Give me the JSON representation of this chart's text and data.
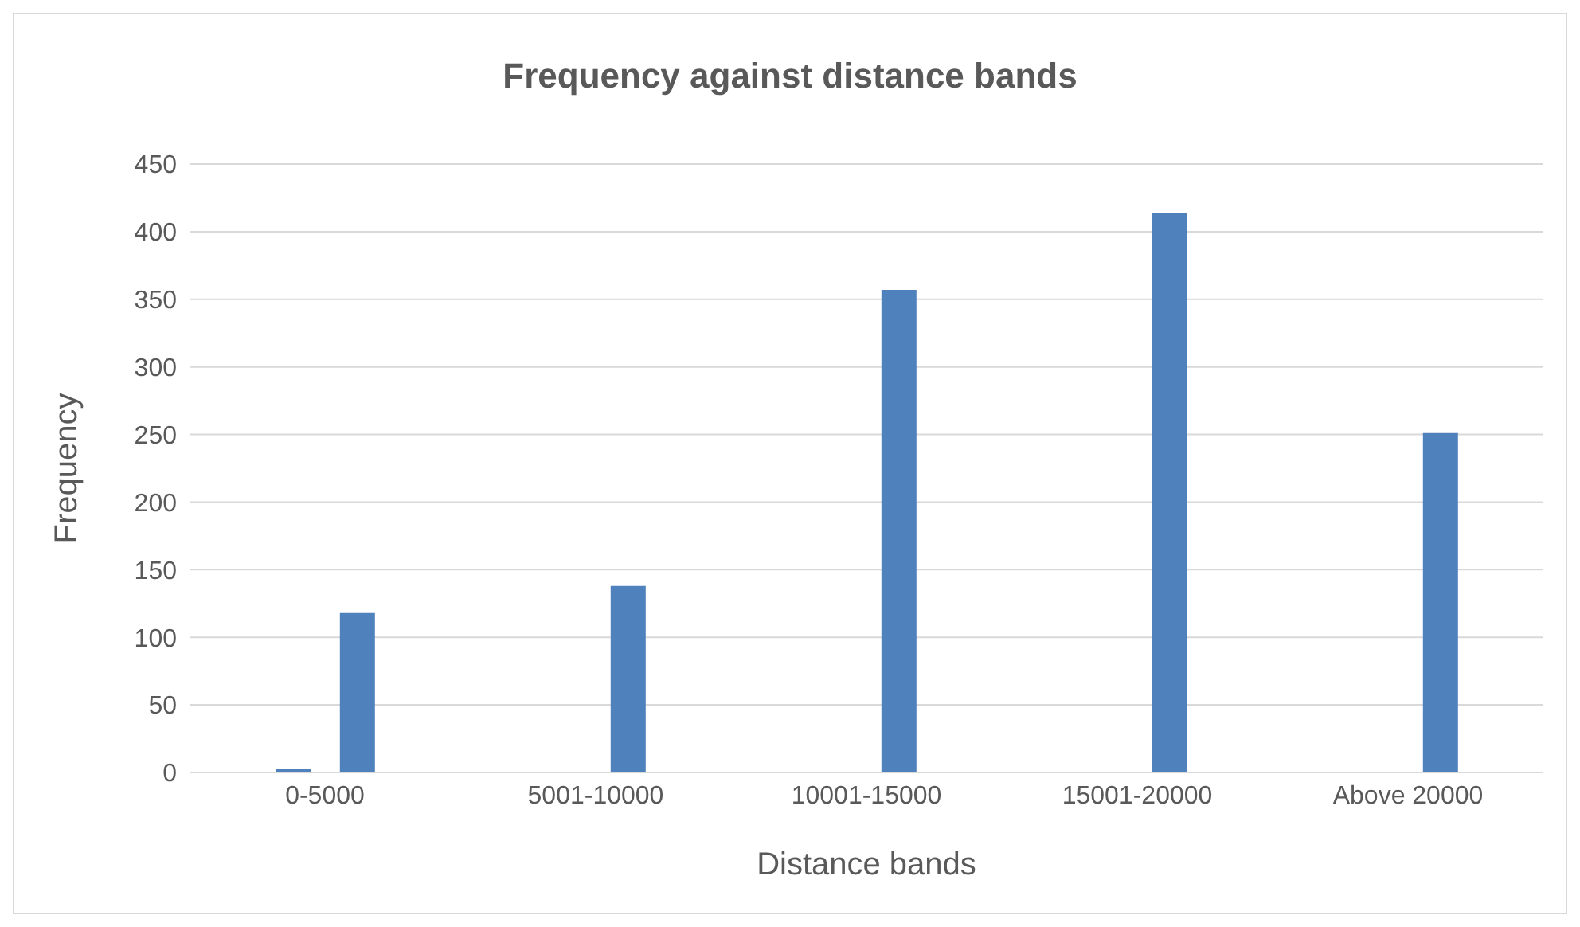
{
  "chart_data": {
    "type": "bar",
    "title": "Frequency against distance bands",
    "xlabel": "Distance bands",
    "ylabel": "Frequency",
    "categories": [
      "0-5000",
      "5001-10000",
      "10001-15000",
      "15001-20000",
      "Above 20000"
    ],
    "series": [
      {
        "color": "#4f81bd",
        "values": [
          3,
          null,
          null,
          null,
          null
        ]
      },
      {
        "color": "#4f81bd",
        "values": [
          118,
          138,
          357,
          414,
          251
        ]
      }
    ],
    "ylim": [
      0,
      450
    ],
    "yticks": [
      0,
      50,
      100,
      150,
      200,
      250,
      300,
      350,
      400,
      450
    ],
    "grid": "y",
    "legend": false
  }
}
